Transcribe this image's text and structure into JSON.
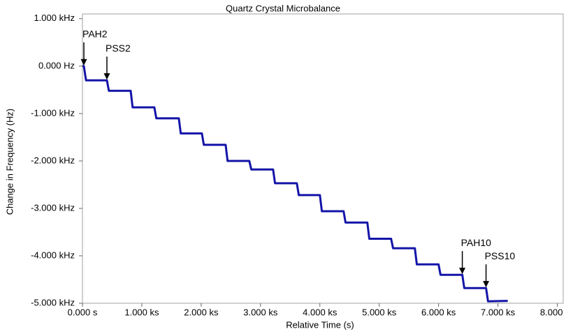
{
  "chart_data": {
    "type": "line",
    "title": "Quartz Crystal Microbalance",
    "xlabel": "Relative Time (s)",
    "ylabel": "Change in Frequency (Hz)",
    "x": [
      0,
      24,
      60,
      412,
      445,
      812,
      845,
      1212,
      1245,
      1624,
      1657,
      2012,
      2045,
      2412,
      2445,
      2812,
      2845,
      3212,
      3245,
      3612,
      3645,
      4000,
      4033,
      4400,
      4433,
      4800,
      4833,
      5200,
      5233,
      5600,
      5633,
      6000,
      6033,
      6400,
      6433,
      6800,
      6833,
      7165
    ],
    "series": [
      {
        "name": "Frequency",
        "color": "#1414a8",
        "values": [
          0,
          0,
          -300,
          -300,
          -520,
          -520,
          -870,
          -870,
          -1100,
          -1100,
          -1420,
          -1420,
          -1660,
          -1660,
          -2000,
          -2000,
          -2180,
          -2180,
          -2470,
          -2470,
          -2720,
          -2720,
          -3060,
          -3060,
          -3300,
          -3300,
          -3640,
          -3640,
          -3840,
          -3840,
          -4180,
          -4180,
          -4400,
          -4400,
          -4680,
          -4680,
          -4960,
          -4950
        ]
      }
    ],
    "xlim": [
      0,
      8100
    ],
    "ylim": [
      -5000,
      1100
    ],
    "xticks": [
      {
        "value": 0,
        "label": "0.000 s"
      },
      {
        "value": 1000,
        "label": "1.000 ks"
      },
      {
        "value": 2000,
        "label": "2.000 ks"
      },
      {
        "value": 3000,
        "label": "3.000 ks"
      },
      {
        "value": 4000,
        "label": "4.000 ks"
      },
      {
        "value": 5000,
        "label": "5.000 ks"
      },
      {
        "value": 6000,
        "label": "6.000 ks"
      },
      {
        "value": 7000,
        "label": "7.000 ks"
      },
      {
        "value": 8000,
        "label": "8.000 ks"
      }
    ],
    "yticks": [
      {
        "value": 1000,
        "label": "1.000 kHz"
      },
      {
        "value": 0,
        "label": "0.000 Hz"
      },
      {
        "value": -1000,
        "label": "-1.000 kHz"
      },
      {
        "value": -2000,
        "label": "-2.000 kHz"
      },
      {
        "value": -3000,
        "label": "-3.000 kHz"
      },
      {
        "value": -4000,
        "label": "-4.000 kHz"
      },
      {
        "value": -5000,
        "label": "-5.000 kHz"
      }
    ],
    "annotations": [
      {
        "text": "PAH2",
        "x": 24,
        "y": 0
      },
      {
        "text": "PSS2",
        "x": 412,
        "y": -300
      },
      {
        "text": "PAH10",
        "x": 6400,
        "y": -4400
      },
      {
        "text": "PSS10",
        "x": 6800,
        "y": -4680
      }
    ]
  }
}
